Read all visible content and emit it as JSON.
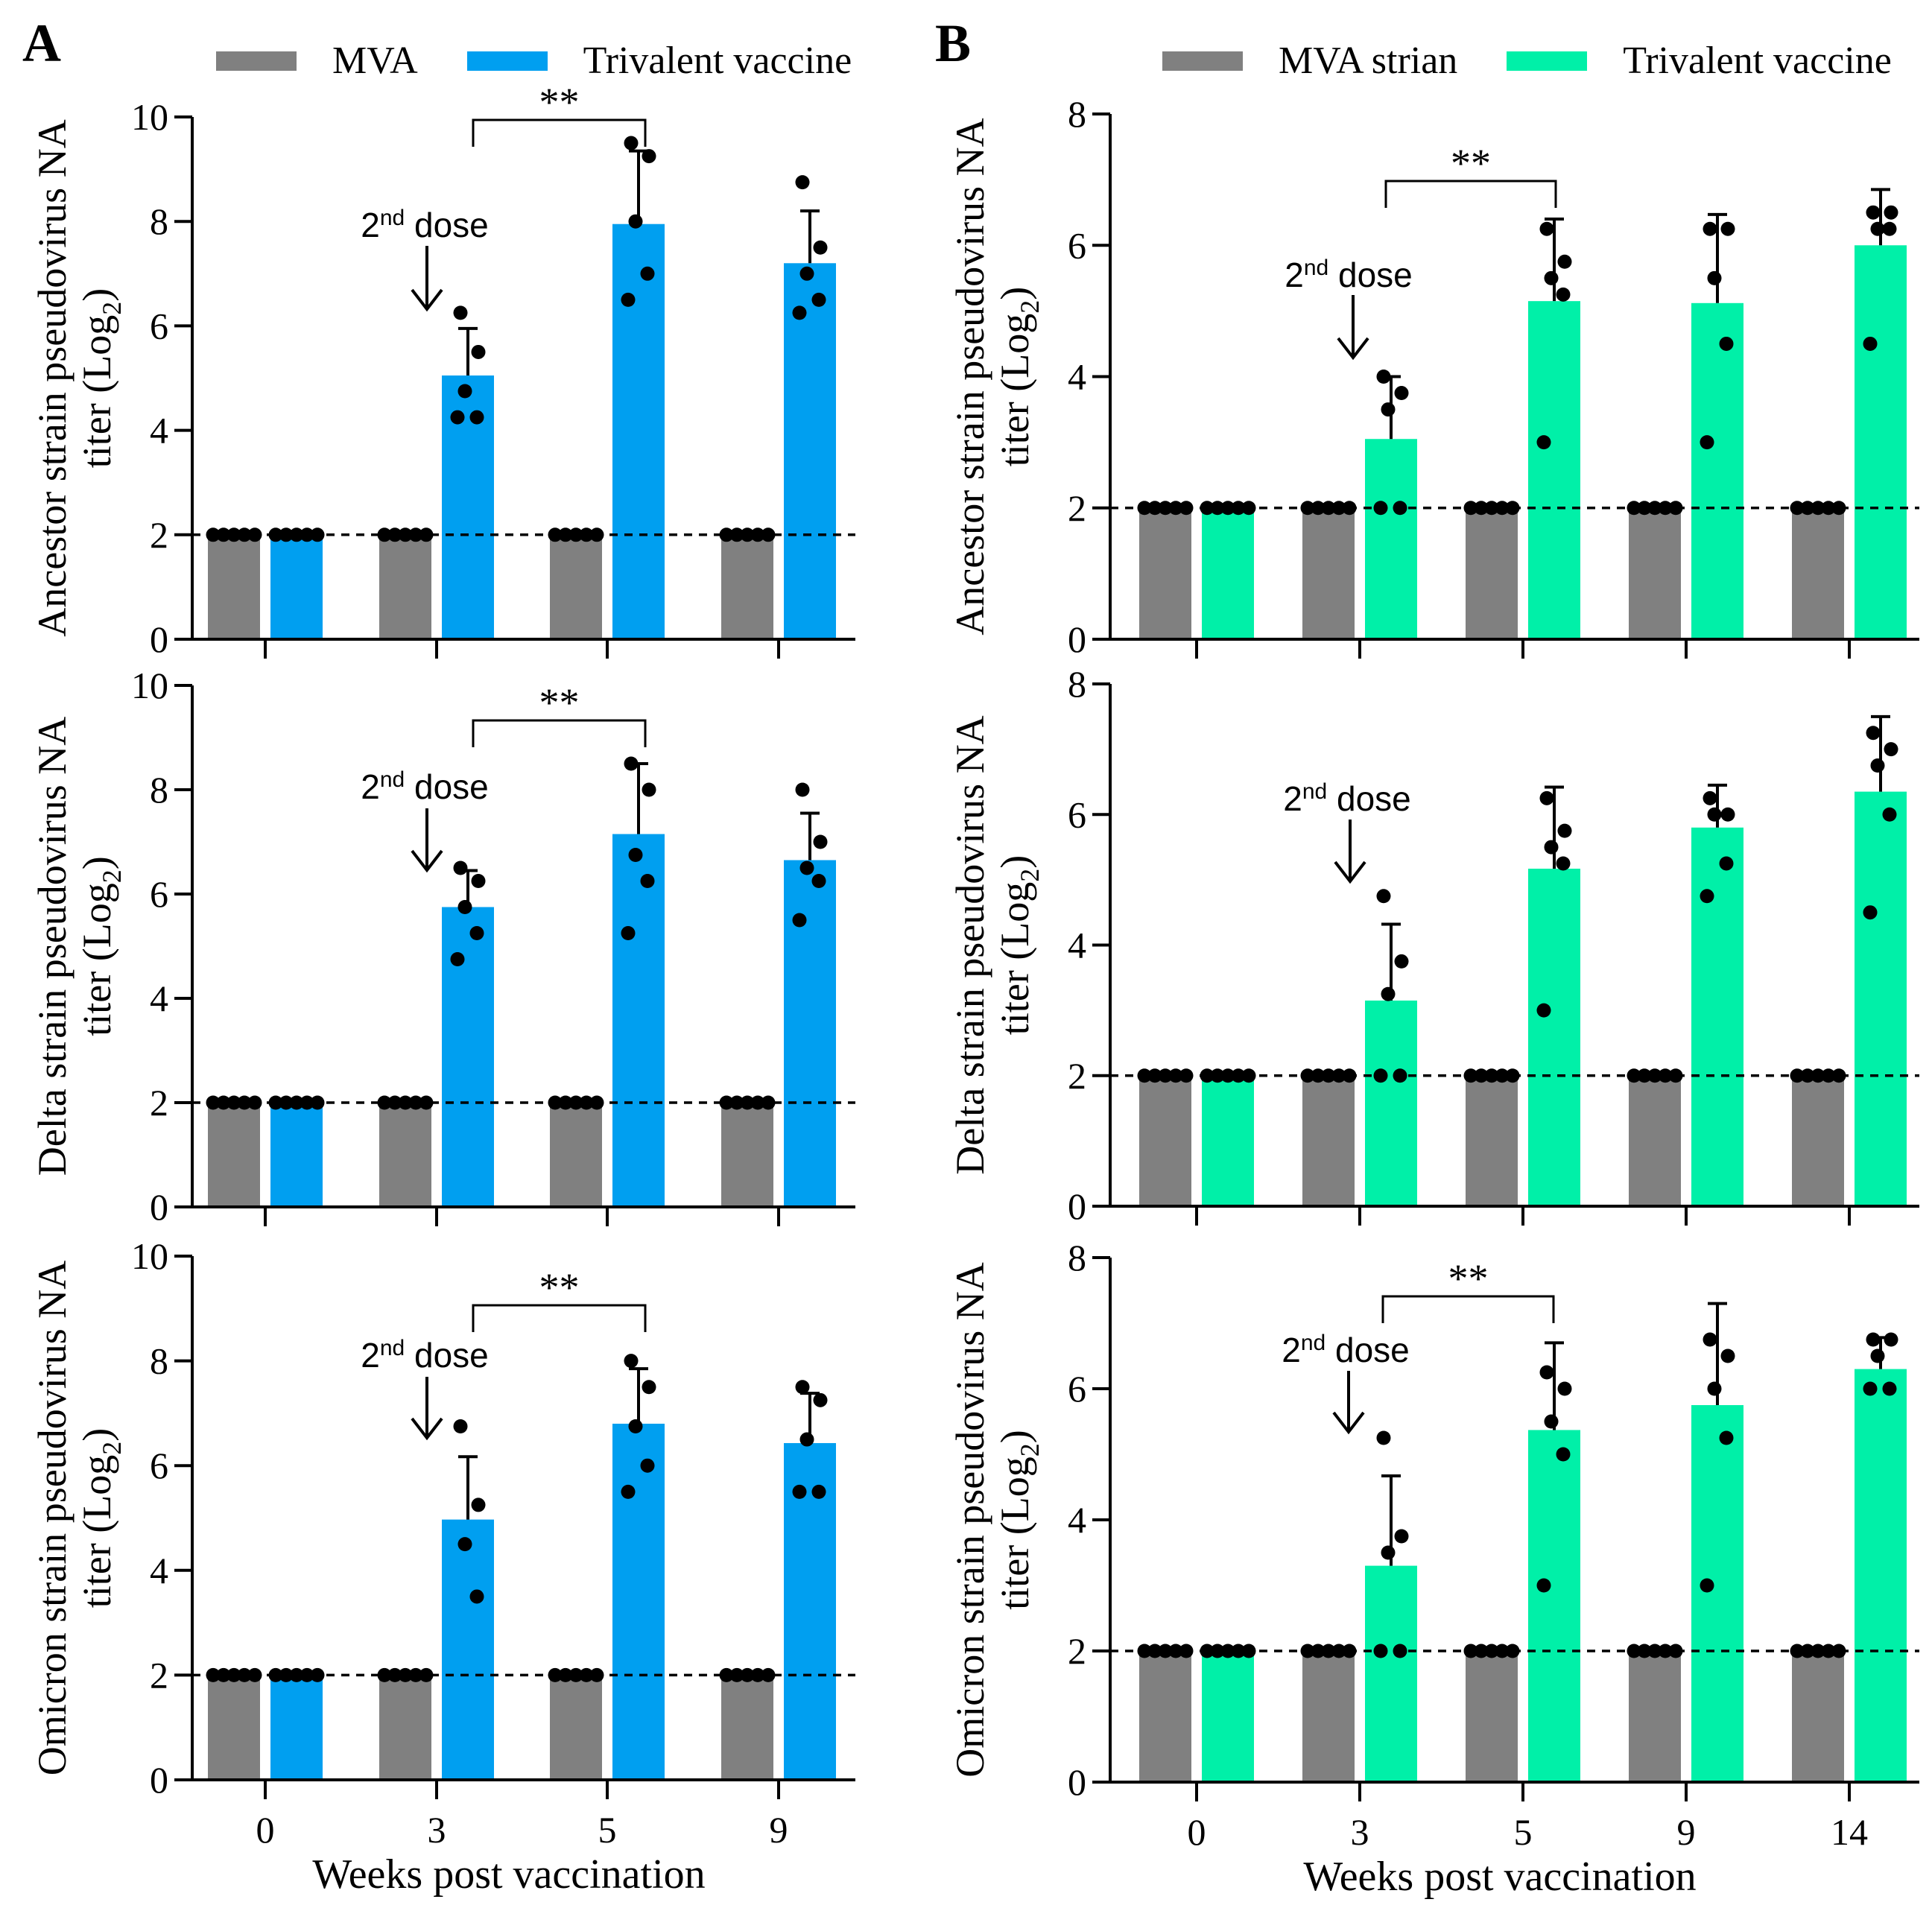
{
  "figure": {
    "panel_labels": [
      "A",
      "B"
    ],
    "colors": {
      "mva": "#808080",
      "vaccine_a": "#009ff0",
      "vaccine_b": "#00f0a8",
      "ink": "#000000"
    },
    "legend_a": {
      "mva": "MVA",
      "vaccine": "Trivalent vaccine"
    },
    "legend_b": {
      "mva": "MVA strian",
      "vaccine": "Trivalent vaccine"
    },
    "dose_label_base": "2",
    "dose_label_sup": "nd",
    "dose_label_rest": " dose"
  },
  "chart_data": [
    {
      "id": "A1",
      "type": "bar",
      "panel": "A",
      "categories": [
        "0",
        "3",
        "5",
        "9"
      ],
      "xlabel": "",
      "ylabel_line1": "Ancestor strain pseudovirus NA",
      "ylabel_line2_pre": "titer (Log",
      "ylabel_line2_sub": "2",
      "ylabel_line2_post": ")",
      "ylim": [
        0,
        10
      ],
      "yticks": [
        0,
        2,
        4,
        6,
        8,
        10
      ],
      "dashed_y": 2,
      "series": [
        {
          "name": "MVA",
          "values": [
            2,
            2,
            2,
            2
          ],
          "sd": [
            0,
            0,
            0,
            0
          ],
          "points": [
            [
              2,
              2,
              2,
              2,
              2
            ],
            [
              2,
              2,
              2,
              2,
              2
            ],
            [
              2,
              2,
              2,
              2,
              2
            ],
            [
              2,
              2,
              2,
              2,
              2
            ]
          ]
        },
        {
          "name": "Trivalent vaccine",
          "values": [
            2,
            5.05,
            7.95,
            7.2
          ],
          "sd": [
            0,
            0.9,
            1.4,
            1.0
          ],
          "points": [
            [
              2,
              2,
              2,
              2,
              2
            ],
            [
              6.25,
              5.5,
              4.75,
              4.25,
              4.25
            ],
            [
              9.5,
              9.25,
              8.0,
              7.0,
              6.5
            ],
            [
              8.75,
              7.5,
              7.0,
              6.5,
              6.25
            ]
          ]
        }
      ],
      "significance": {
        "label": "**",
        "from": 1,
        "to": 2
      },
      "dose_at": 1
    },
    {
      "id": "A2",
      "type": "bar",
      "panel": "A",
      "categories": [
        "0",
        "3",
        "5",
        "9"
      ],
      "xlabel": "",
      "ylabel_line1": "Delta strain pseudovirus NA",
      "ylabel_line2_pre": "titer (Log",
      "ylabel_line2_sub": "2",
      "ylabel_line2_post": ")",
      "ylim": [
        0,
        10
      ],
      "yticks": [
        0,
        2,
        4,
        6,
        8,
        10
      ],
      "dashed_y": 2,
      "series": [
        {
          "name": "MVA",
          "values": [
            2,
            2,
            2,
            2
          ],
          "sd": [
            0,
            0,
            0,
            0
          ],
          "points": [
            [
              2,
              2,
              2,
              2,
              2
            ],
            [
              2,
              2,
              2,
              2,
              2
            ],
            [
              2,
              2,
              2,
              2,
              2
            ],
            [
              2,
              2,
              2,
              2,
              2
            ]
          ]
        },
        {
          "name": "Trivalent vaccine",
          "values": [
            2,
            5.75,
            7.15,
            6.65
          ],
          "sd": [
            0,
            0.7,
            1.35,
            0.9
          ],
          "points": [
            [
              2,
              2,
              2,
              2,
              2
            ],
            [
              6.5,
              6.25,
              5.75,
              5.25,
              4.75
            ],
            [
              8.5,
              8.0,
              6.75,
              6.25,
              5.25
            ],
            [
              8.0,
              7.0,
              6.5,
              6.25,
              5.5
            ]
          ]
        }
      ],
      "significance": {
        "label": "**",
        "from": 1,
        "to": 2
      },
      "dose_at": 1
    },
    {
      "id": "A3",
      "type": "bar",
      "panel": "A",
      "categories": [
        "0",
        "3",
        "5",
        "9"
      ],
      "xlabel": "Weeks post vaccination",
      "ylabel_line1": "Omicron strain pseudovirus NA",
      "ylabel_line2_pre": "titer (Log",
      "ylabel_line2_sub": "2",
      "ylabel_line2_post": ")",
      "ylim": [
        0,
        10
      ],
      "yticks": [
        0,
        2,
        4,
        6,
        8,
        10
      ],
      "dashed_y": 2,
      "series": [
        {
          "name": "MVA",
          "values": [
            2,
            2,
            2,
            2
          ],
          "sd": [
            0,
            0,
            0,
            0
          ],
          "points": [
            [
              2,
              2,
              2,
              2,
              2
            ],
            [
              2,
              2,
              2,
              2,
              2
            ],
            [
              2,
              2,
              2,
              2,
              2
            ],
            [
              2,
              2,
              2,
              2,
              2
            ]
          ]
        },
        {
          "name": "Trivalent vaccine",
          "values": [
            2,
            4.97,
            6.8,
            6.43
          ],
          "sd": [
            0,
            1.2,
            1.05,
            0.95
          ],
          "points": [
            [
              2,
              2,
              2,
              2,
              2
            ],
            [
              6.75,
              5.25,
              4.5,
              3.5
            ],
            [
              8.0,
              7.5,
              6.75,
              6.0,
              5.5
            ],
            [
              7.5,
              7.25,
              6.5,
              5.5,
              5.5
            ]
          ]
        }
      ],
      "significance": {
        "label": "**",
        "from": 1,
        "to": 2
      },
      "dose_at": 1
    },
    {
      "id": "B1",
      "type": "bar",
      "panel": "B",
      "categories": [
        "0",
        "3",
        "5",
        "9",
        "14"
      ],
      "xlabel": "",
      "ylabel_line1": "Ancestor strain pseudovirus NA",
      "ylabel_line2_pre": "titer (Log",
      "ylabel_line2_sub": "2",
      "ylabel_line2_post": ")",
      "ylim": [
        0,
        8
      ],
      "yticks": [
        0,
        2,
        4,
        6,
        8
      ],
      "dashed_y": 2,
      "series": [
        {
          "name": "MVA strian",
          "values": [
            2,
            2,
            2,
            2,
            2
          ],
          "sd": [
            0,
            0,
            0,
            0,
            0
          ],
          "points": [
            [
              2,
              2,
              2,
              2,
              2
            ],
            [
              2,
              2,
              2,
              2,
              2
            ],
            [
              2,
              2,
              2,
              2,
              2
            ],
            [
              2,
              2,
              2,
              2,
              2
            ],
            [
              2,
              2,
              2,
              2,
              2
            ]
          ]
        },
        {
          "name": "Trivalent vaccine",
          "values": [
            2,
            3.05,
            5.15,
            5.12,
            6.0
          ],
          "sd": [
            0,
            0.95,
            1.25,
            1.35,
            0.85
          ],
          "points": [
            [
              2,
              2,
              2,
              2,
              2
            ],
            [
              4.0,
              3.75,
              3.5,
              2.0,
              2.0
            ],
            [
              6.25,
              5.75,
              5.5,
              5.25,
              3.0
            ],
            [
              6.25,
              6.25,
              5.5,
              4.5,
              3.0
            ],
            [
              6.5,
              6.5,
              6.25,
              6.25,
              4.5
            ]
          ]
        }
      ],
      "significance": {
        "label": "**",
        "from": 1,
        "to": 2
      },
      "dose_at": 1
    },
    {
      "id": "B2",
      "type": "bar",
      "panel": "B",
      "categories": [
        "0",
        "3",
        "5",
        "9",
        "14"
      ],
      "xlabel": "",
      "ylabel_line1": "Delta strain pseudovirus NA",
      "ylabel_line2_pre": "titer (Log",
      "ylabel_line2_sub": "2",
      "ylabel_line2_post": ")",
      "ylim": [
        0,
        8
      ],
      "yticks": [
        0,
        2,
        4,
        6,
        8
      ],
      "dashed_y": 2,
      "series": [
        {
          "name": "MVA strian",
          "values": [
            2,
            2,
            2,
            2,
            2
          ],
          "sd": [
            0,
            0,
            0,
            0,
            0
          ],
          "points": [
            [
              2,
              2,
              2,
              2,
              2
            ],
            [
              2,
              2,
              2,
              2,
              2
            ],
            [
              2,
              2,
              2,
              2,
              2
            ],
            [
              2,
              2,
              2,
              2,
              2
            ],
            [
              2,
              2,
              2,
              2,
              2
            ]
          ]
        },
        {
          "name": "Trivalent vaccine",
          "values": [
            2,
            3.15,
            5.17,
            5.8,
            6.35
          ],
          "sd": [
            0,
            1.17,
            1.25,
            0.65,
            1.15
          ],
          "points": [
            [
              2,
              2,
              2,
              2,
              2
            ],
            [
              4.75,
              3.75,
              3.25,
              2.0,
              2.0
            ],
            [
              6.25,
              5.75,
              5.5,
              5.25,
              3.0
            ],
            [
              6.25,
              6.0,
              6.0,
              5.25,
              4.75
            ],
            [
              7.25,
              7.0,
              6.75,
              6.0,
              4.5
            ]
          ]
        }
      ],
      "significance": null,
      "dose_at": 1
    },
    {
      "id": "B3",
      "type": "bar",
      "panel": "B",
      "categories": [
        "0",
        "3",
        "5",
        "9",
        "14"
      ],
      "xlabel": "Weeks post vaccination",
      "ylabel_line1": "Omicron strain pseudovirus NA",
      "ylabel_line2_pre": "titer (Log",
      "ylabel_line2_sub": "2",
      "ylabel_line2_post": ")",
      "ylim": [
        0,
        8
      ],
      "yticks": [
        0,
        2,
        4,
        6,
        8
      ],
      "dashed_y": 2,
      "series": [
        {
          "name": "MVA strian",
          "values": [
            2,
            2,
            2,
            2,
            2
          ],
          "sd": [
            0,
            0,
            0,
            0,
            0
          ],
          "points": [
            [
              2,
              2,
              2,
              2,
              2
            ],
            [
              2,
              2,
              2,
              2,
              2
            ],
            [
              2,
              2,
              2,
              2,
              2
            ],
            [
              2,
              2,
              2,
              2,
              2
            ],
            [
              2,
              2,
              2,
              2,
              2
            ]
          ]
        },
        {
          "name": "Trivalent vaccine",
          "values": [
            2,
            3.3,
            5.37,
            5.75,
            6.3
          ],
          "sd": [
            0,
            1.37,
            1.33,
            1.55,
            0.48
          ],
          "points": [
            [
              2,
              2,
              2,
              2,
              2
            ],
            [
              5.25,
              3.75,
              3.5,
              2.0,
              2.0
            ],
            [
              6.25,
              6.0,
              5.5,
              5.0,
              3.0
            ],
            [
              6.75,
              6.5,
              6.0,
              5.25,
              3.0
            ],
            [
              6.75,
              6.75,
              6.5,
              6.0,
              6.0
            ]
          ]
        }
      ],
      "significance": {
        "label": "**",
        "from": 1,
        "to": 2
      },
      "dose_at": 1
    }
  ]
}
